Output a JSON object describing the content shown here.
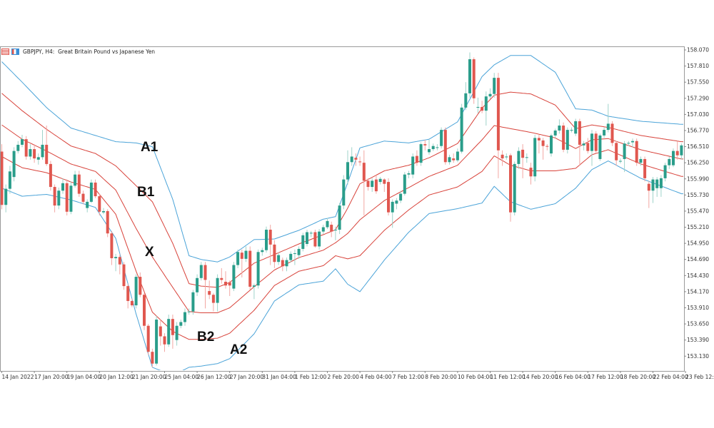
{
  "header": {
    "symbol_title": "GBPJPY, H4:  Great Britain Pound vs Japanese Yen",
    "icons": [
      "list-icon",
      "chart-bars-icon"
    ]
  },
  "annotations": {
    "a1": "A1",
    "b1": "B1",
    "x": "X",
    "b2": "B2",
    "a2": "A2"
  },
  "colors": {
    "bull": "#2a9d8a",
    "bear": "#e0574f",
    "bull_wick": "#9fd3ca",
    "bear_wick": "#f2a7a3",
    "outer_band": "#4aa3d8",
    "inner_band": "#d8423a"
  },
  "chart_data": {
    "type": "candlestick",
    "symbol": "GBPJPY",
    "timeframe": "H4",
    "title": "GBPJPY, H4:  Great Britain Pound vs Japanese Yen",
    "ylim": [
      153.0,
      158.13
    ],
    "y_axis_position": "right",
    "grid": false,
    "y_ticks": [
      "158.070",
      "157.810",
      "157.550",
      "157.290",
      "157.030",
      "156.770",
      "156.510",
      "156.250",
      "155.990",
      "155.730",
      "155.470",
      "155.210",
      "154.950",
      "154.690",
      "154.430",
      "154.170",
      "153.910",
      "153.650",
      "153.390",
      "153.130"
    ],
    "x_ticks": [
      "14 Jan 2022",
      "17 Jan 20:00",
      "19 Jan 04:00",
      "20 Jan 12:00",
      "21 Jan 20:00",
      "25 Jan 04:00",
      "26 Jan 12:00",
      "27 Jan 20:00",
      "31 Jan 04:00",
      "1 Feb 12:00",
      "2 Feb 20:00",
      "4 Feb 04:00",
      "7 Feb 12:00",
      "8 Feb 20:00",
      "10 Feb 04:00",
      "11 Feb 12:00",
      "14 Feb 20:00",
      "16 Feb 04:00",
      "17 Feb 12:00",
      "18 Feb 20:00",
      "22 Feb 04:00",
      "23 Feb 12:00"
    ],
    "candles_ohlc": [
      [
        156.43,
        156.55,
        155.5,
        155.57
      ],
      [
        155.57,
        155.9,
        155.45,
        155.83
      ],
      [
        155.83,
        156.2,
        155.75,
        156.11
      ],
      [
        156.02,
        156.5,
        155.95,
        156.44
      ],
      [
        156.44,
        156.6,
        156.4,
        156.54
      ],
      [
        156.54,
        156.7,
        156.5,
        156.63
      ],
      [
        156.63,
        156.68,
        156.3,
        156.35
      ],
      [
        156.35,
        156.55,
        156.3,
        156.47
      ],
      [
        156.47,
        156.55,
        156.25,
        156.32
      ],
      [
        156.3,
        156.4,
        156.22,
        156.34
      ],
      [
        156.34,
        156.78,
        156.3,
        156.54
      ],
      [
        156.54,
        156.85,
        156.2,
        156.23
      ],
      [
        156.23,
        156.28,
        155.8,
        155.86
      ],
      [
        155.86,
        155.9,
        155.45,
        155.56
      ],
      [
        155.56,
        155.85,
        155.5,
        155.8
      ],
      [
        155.8,
        156.0,
        155.75,
        155.92
      ],
      [
        155.92,
        155.98,
        155.4,
        155.46
      ],
      [
        155.46,
        155.95,
        155.42,
        155.88
      ],
      [
        155.88,
        156.12,
        155.85,
        156.06
      ],
      [
        156.06,
        156.12,
        155.7,
        155.75
      ],
      [
        155.75,
        155.8,
        155.58,
        155.62
      ],
      [
        155.52,
        155.66,
        155.45,
        155.62
      ],
      [
        155.62,
        155.98,
        155.6,
        155.93
      ],
      [
        155.93,
        155.98,
        155.68,
        155.71
      ],
      [
        155.71,
        155.75,
        155.4,
        155.46
      ],
      [
        155.45,
        155.52,
        155.42,
        155.47
      ],
      [
        155.47,
        155.5,
        155.05,
        155.11
      ],
      [
        155.11,
        155.15,
        154.6,
        154.71
      ],
      [
        154.71,
        154.78,
        154.5,
        154.73
      ],
      [
        154.73,
        154.78,
        154.45,
        154.61
      ],
      [
        154.61,
        154.65,
        154.2,
        154.26
      ],
      [
        154.26,
        154.3,
        153.9,
        154.02
      ],
      [
        154.02,
        154.06,
        153.92,
        153.95
      ],
      [
        153.95,
        154.45,
        153.9,
        154.41
      ],
      [
        154.41,
        154.48,
        154.08,
        154.12
      ],
      [
        154.12,
        154.15,
        153.55,
        153.62
      ],
      [
        153.62,
        153.65,
        153.15,
        153.2
      ],
      [
        153.2,
        153.25,
        152.95,
        153.01
      ],
      [
        153.01,
        153.78,
        152.98,
        153.72
      ],
      [
        153.61,
        153.72,
        153.3,
        153.45
      ],
      [
        153.45,
        153.5,
        153.2,
        153.32
      ],
      [
        153.32,
        153.8,
        153.28,
        153.73
      ],
      [
        153.73,
        153.8,
        153.25,
        153.47
      ],
      [
        153.39,
        153.68,
        153.3,
        153.62
      ],
      [
        153.62,
        153.72,
        153.58,
        153.68
      ],
      [
        153.68,
        153.9,
        153.62,
        153.84
      ],
      [
        153.84,
        153.9,
        153.8,
        153.85
      ],
      [
        153.85,
        154.2,
        153.8,
        154.16
      ],
      [
        154.16,
        154.45,
        154.1,
        154.39
      ],
      [
        154.39,
        154.65,
        154.35,
        154.6
      ],
      [
        154.6,
        154.65,
        153.9,
        154.36
      ],
      [
        154.18,
        154.35,
        154.05,
        154.12
      ],
      [
        154.12,
        154.15,
        153.85,
        153.99
      ],
      [
        153.99,
        154.45,
        153.85,
        154.39
      ],
      [
        154.39,
        154.55,
        154.3,
        154.36
      ],
      [
        154.33,
        154.5,
        154.22,
        154.27
      ],
      [
        154.32,
        154.35,
        154.1,
        154.27
      ],
      [
        154.22,
        154.65,
        154.18,
        154.6
      ],
      [
        154.6,
        154.85,
        154.55,
        154.81
      ],
      [
        154.8,
        154.85,
        154.4,
        154.7
      ],
      [
        154.7,
        154.9,
        154.65,
        154.83
      ],
      [
        154.83,
        154.9,
        154.2,
        154.25
      ],
      [
        154.25,
        154.3,
        154.05,
        154.27
      ],
      [
        154.27,
        154.85,
        154.22,
        154.81
      ],
      [
        154.81,
        154.88,
        154.75,
        154.84
      ],
      [
        154.84,
        155.22,
        154.8,
        155.17
      ],
      [
        155.17,
        155.25,
        154.6,
        154.93
      ],
      [
        154.93,
        155.0,
        154.55,
        154.65
      ],
      [
        154.65,
        154.8,
        154.6,
        154.76
      ],
      [
        154.68,
        154.72,
        154.5,
        154.58
      ],
      [
        154.58,
        154.72,
        154.5,
        154.68
      ],
      [
        154.68,
        154.82,
        154.64,
        154.78
      ],
      [
        154.78,
        154.85,
        154.6,
        154.79
      ],
      [
        154.76,
        154.9,
        154.7,
        154.86
      ],
      [
        154.86,
        155.12,
        154.82,
        155.08
      ],
      [
        154.94,
        155.17,
        154.9,
        155.13
      ],
      [
        155.12,
        155.15,
        155.05,
        155.12
      ],
      [
        155.13,
        155.17,
        154.88,
        154.9
      ],
      [
        154.9,
        155.18,
        154.85,
        155.14
      ],
      [
        155.14,
        155.25,
        155.1,
        155.21
      ],
      [
        155.21,
        155.36,
        155.18,
        155.31
      ],
      [
        155.25,
        155.3,
        155.05,
        155.14
      ],
      [
        155.17,
        155.22,
        155.0,
        155.17
      ],
      [
        155.17,
        155.6,
        155.1,
        155.56
      ],
      [
        155.56,
        156.05,
        155.5,
        155.98
      ],
      [
        155.98,
        156.45,
        155.9,
        156.26
      ],
      [
        156.26,
        156.5,
        156.2,
        156.35
      ],
      [
        156.33,
        156.4,
        156.2,
        156.3
      ],
      [
        156.27,
        156.35,
        156.2,
        156.26
      ],
      [
        156.25,
        156.45,
        155.4,
        155.96
      ],
      [
        155.96,
        156.0,
        155.8,
        155.86
      ],
      [
        155.86,
        156.0,
        155.78,
        155.96
      ],
      [
        155.98,
        156.05,
        155.75,
        155.79
      ],
      [
        155.94,
        156.02,
        155.9,
        155.99
      ],
      [
        155.98,
        156.0,
        155.78,
        155.91
      ],
      [
        155.94,
        156.0,
        155.4,
        155.45
      ],
      [
        155.45,
        155.66,
        155.2,
        155.62
      ],
      [
        155.59,
        155.68,
        155.5,
        155.64
      ],
      [
        155.64,
        155.8,
        155.6,
        155.75
      ],
      [
        155.75,
        156.1,
        155.72,
        156.06
      ],
      [
        156.06,
        156.12,
        156.0,
        156.08
      ],
      [
        156.06,
        156.4,
        156.0,
        156.35
      ],
      [
        156.36,
        156.45,
        156.2,
        156.25
      ],
      [
        156.25,
        156.58,
        156.2,
        156.55
      ],
      [
        156.55,
        156.62,
        156.45,
        156.53
      ],
      [
        156.42,
        156.62,
        156.38,
        156.47
      ],
      [
        156.47,
        156.56,
        156.44,
        156.52
      ],
      [
        156.5,
        156.55,
        156.45,
        156.5
      ],
      [
        156.52,
        156.82,
        156.48,
        156.78
      ],
      [
        156.78,
        156.82,
        156.22,
        156.26
      ],
      [
        156.26,
        156.38,
        156.22,
        156.34
      ],
      [
        156.32,
        156.4,
        156.25,
        156.29
      ],
      [
        156.29,
        156.48,
        156.26,
        156.43
      ],
      [
        156.43,
        157.2,
        156.4,
        157.14
      ],
      [
        157.14,
        157.55,
        157.1,
        157.37
      ],
      [
        157.37,
        158.03,
        157.3,
        157.92
      ],
      [
        157.92,
        157.95,
        157.2,
        157.29
      ],
      [
        157.15,
        157.3,
        157.05,
        157.15
      ],
      [
        157.15,
        157.25,
        157.05,
        157.09
      ],
      [
        157.09,
        157.4,
        156.85,
        157.32
      ],
      [
        157.32,
        157.45,
        157.28,
        157.36
      ],
      [
        157.36,
        157.7,
        157.3,
        157.62
      ],
      [
        157.62,
        157.7,
        156.0,
        156.45
      ],
      [
        156.38,
        156.45,
        156.2,
        156.32
      ],
      [
        156.35,
        156.4,
        156.3,
        156.35
      ],
      [
        156.37,
        156.4,
        155.3,
        155.45
      ],
      [
        155.45,
        156.27,
        155.4,
        156.23
      ],
      [
        156.23,
        156.5,
        156.15,
        156.44
      ],
      [
        156.46,
        156.55,
        156.0,
        156.33
      ],
      [
        156.34,
        156.4,
        156.25,
        156.34
      ],
      [
        156.17,
        156.25,
        155.9,
        156.03
      ],
      [
        156.03,
        156.7,
        155.95,
        156.65
      ],
      [
        156.65,
        156.7,
        156.4,
        156.61
      ],
      [
        156.61,
        156.65,
        156.3,
        156.52
      ],
      [
        156.52,
        156.55,
        156.45,
        156.51
      ],
      [
        156.4,
        156.72,
        156.35,
        156.69
      ],
      [
        156.69,
        156.8,
        156.65,
        156.77
      ],
      [
        156.77,
        156.95,
        156.72,
        156.85
      ],
      [
        156.85,
        156.9,
        156.42,
        156.46
      ],
      [
        156.46,
        156.82,
        156.4,
        156.78
      ],
      [
        156.78,
        156.82,
        156.74,
        156.78
      ],
      [
        156.72,
        156.96,
        156.68,
        156.92
      ],
      [
        156.92,
        156.96,
        156.2,
        156.54
      ],
      [
        156.53,
        156.6,
        156.45,
        156.56
      ],
      [
        156.57,
        156.65,
        156.4,
        156.44
      ],
      [
        156.44,
        156.78,
        156.2,
        156.72
      ],
      [
        156.72,
        156.76,
        156.4,
        156.44
      ],
      [
        156.31,
        156.72,
        156.28,
        156.69
      ],
      [
        156.69,
        156.82,
        156.65,
        156.78
      ],
      [
        156.78,
        157.2,
        156.74,
        156.88
      ],
      [
        156.88,
        156.92,
        156.52,
        156.57
      ],
      [
        156.57,
        156.6,
        156.2,
        156.29
      ],
      [
        156.28,
        156.32,
        156.24,
        156.28
      ],
      [
        156.31,
        156.6,
        156.1,
        156.56
      ],
      [
        156.56,
        156.6,
        156.52,
        156.57
      ],
      [
        156.58,
        156.64,
        156.5,
        156.6
      ],
      [
        156.6,
        156.64,
        156.2,
        156.25
      ],
      [
        156.25,
        156.35,
        156.2,
        156.31
      ],
      [
        156.31,
        156.35,
        155.95,
        156.0
      ],
      [
        155.91,
        155.95,
        155.52,
        155.8
      ],
      [
        155.8,
        156.02,
        155.6,
        155.98
      ],
      [
        155.84,
        156.02,
        155.7,
        155.98
      ],
      [
        155.84,
        156.05,
        155.7,
        156.0
      ],
      [
        156.0,
        156.25,
        155.95,
        156.21
      ],
      [
        156.21,
        156.35,
        156.15,
        156.31
      ],
      [
        156.21,
        156.48,
        156.18,
        156.44
      ],
      [
        156.44,
        156.6,
        156.3,
        156.37
      ],
      [
        156.37,
        156.56,
        156.3,
        156.53
      ]
    ],
    "bollinger_samples": [
      {
        "candle": 0,
        "middle": 156.86,
        "dev": 0.51
      },
      {
        "candle": 5,
        "middle": 156.63,
        "dev": 0.46
      },
      {
        "candle": 11,
        "middle": 156.44,
        "dev": 0.35
      },
      {
        "candle": 17,
        "middle": 156.23,
        "dev": 0.29
      },
      {
        "candle": 23,
        "middle": 156.11,
        "dev": 0.29
      },
      {
        "candle": 28,
        "middle": 155.81,
        "dev": 0.39
      },
      {
        "candle": 33,
        "middle": 155.19,
        "dev": 0.69
      },
      {
        "candle": 37,
        "middle": 154.73,
        "dev": 0.89
      },
      {
        "candle": 42,
        "middle": 154.24,
        "dev": 0.71
      },
      {
        "candle": 46,
        "middle": 153.85,
        "dev": 0.45
      },
      {
        "candle": 49,
        "middle": 153.83,
        "dev": 0.43
      },
      {
        "candle": 53,
        "middle": 153.83,
        "dev": 0.41
      },
      {
        "candle": 56,
        "middle": 153.91,
        "dev": 0.41
      },
      {
        "candle": 62,
        "middle": 154.25,
        "dev": 0.38
      },
      {
        "candle": 67,
        "middle": 154.52,
        "dev": 0.25
      },
      {
        "candle": 73,
        "middle": 154.72,
        "dev": 0.22
      },
      {
        "candle": 79,
        "middle": 154.84,
        "dev": 0.25
      },
      {
        "candle": 82,
        "middle": 154.96,
        "dev": 0.21
      },
      {
        "candle": 85,
        "middle": 155.11,
        "dev": 0.41
      },
      {
        "candle": 88,
        "middle": 155.33,
        "dev": 0.58
      },
      {
        "candle": 94,
        "middle": 155.64,
        "dev": 0.48
      },
      {
        "candle": 100,
        "middle": 155.85,
        "dev": 0.36
      },
      {
        "candle": 105,
        "middle": 156.03,
        "dev": 0.3
      },
      {
        "candle": 112,
        "middle": 156.21,
        "dev": 0.35
      },
      {
        "candle": 118,
        "middle": 156.62,
        "dev": 0.51
      },
      {
        "candle": 121,
        "middle": 156.85,
        "dev": 0.49
      },
      {
        "candle": 125,
        "middle": 156.8,
        "dev": 0.59
      },
      {
        "candle": 130,
        "middle": 156.74,
        "dev": 0.62
      },
      {
        "candle": 136,
        "middle": 156.65,
        "dev": 0.53
      },
      {
        "candle": 141,
        "middle": 156.48,
        "dev": 0.32
      },
      {
        "candle": 145,
        "middle": 156.62,
        "dev": 0.24
      },
      {
        "candle": 149,
        "middle": 156.64,
        "dev": 0.18
      },
      {
        "candle": 157,
        "middle": 156.46,
        "dev": 0.23
      },
      {
        "candle": 167,
        "middle": 156.31,
        "dev": 0.28
      }
    ],
    "lines": [
      {
        "label": "A1",
        "dev_multiplier": 2,
        "color": "outer_band"
      },
      {
        "label": "B1",
        "dev_multiplier": 1,
        "color": "inner_band"
      },
      {
        "label": "X",
        "dev_multiplier": 0,
        "color": "inner_band"
      },
      {
        "label": "B2",
        "dev_multiplier": -1,
        "color": "inner_band"
      },
      {
        "label": "A2",
        "dev_multiplier": -2,
        "color": "outer_band"
      }
    ]
  }
}
